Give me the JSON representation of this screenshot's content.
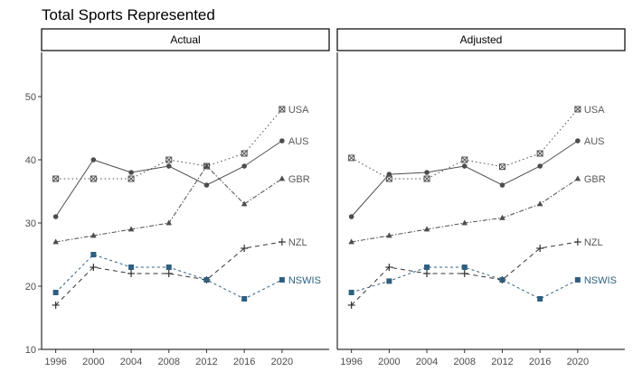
{
  "chart_data": {
    "type": "line",
    "title": "Total Sports Represented",
    "xlabel": "",
    "ylabel": "",
    "x": [
      1996,
      2000,
      2004,
      2008,
      2012,
      2016,
      2020
    ],
    "xlim": [
      1994.5,
      2025
    ],
    "ylim": [
      10,
      57
    ],
    "yticks": [
      10,
      20,
      30,
      40,
      50
    ],
    "panels": [
      {
        "name": "Actual",
        "series": [
          {
            "name": "USA",
            "values": [
              37,
              37,
              37,
              40,
              39,
              41,
              48
            ]
          },
          {
            "name": "AUS",
            "values": [
              31,
              40,
              38,
              39,
              36,
              39,
              43
            ]
          },
          {
            "name": "GBR",
            "values": [
              27,
              28,
              29,
              30,
              39,
              33,
              37
            ]
          },
          {
            "name": "NZL",
            "values": [
              17,
              23,
              22,
              22,
              21,
              26,
              27
            ]
          },
          {
            "name": "NSWIS",
            "values": [
              19,
              25,
              23,
              23,
              21,
              18,
              21
            ]
          }
        ]
      },
      {
        "name": "Adjusted",
        "series": [
          {
            "name": "USA",
            "values": [
              40.3,
              37,
              37,
              40,
              38.9,
              41,
              48
            ]
          },
          {
            "name": "AUS",
            "values": [
              31,
              37.7,
              38,
              39,
              36,
              39,
              43
            ]
          },
          {
            "name": "GBR",
            "values": [
              27,
              28,
              29,
              30,
              30.8,
              33,
              37
            ]
          },
          {
            "name": "NZL",
            "values": [
              17,
              23,
              22,
              22,
              21,
              26,
              27
            ]
          },
          {
            "name": "NSWIS",
            "values": [
              19,
              20.8,
              23,
              23,
              21,
              18,
              21
            ]
          }
        ]
      }
    ],
    "series_styles": {
      "USA": {
        "color": "#4d4d4d",
        "dash": "1.5,3",
        "marker": "square-x",
        "label_color": "#595959"
      },
      "AUS": {
        "color": "#4d4d4d",
        "dash": "",
        "marker": "circle",
        "label_color": "#595959"
      },
      "GBR": {
        "color": "#4d4d4d",
        "dash": "5,2,1.5,2",
        "marker": "triangle",
        "label_color": "#595959"
      },
      "NZL": {
        "color": "#333333",
        "dash": "5,4",
        "marker": "plus",
        "label_color": "#595959"
      },
      "NSWIS": {
        "color": "#2f5f80",
        "dash": "3,3",
        "marker": "square",
        "label_color": "#2f5f80"
      }
    },
    "grid": false,
    "legend": "direct labels at line ends"
  }
}
